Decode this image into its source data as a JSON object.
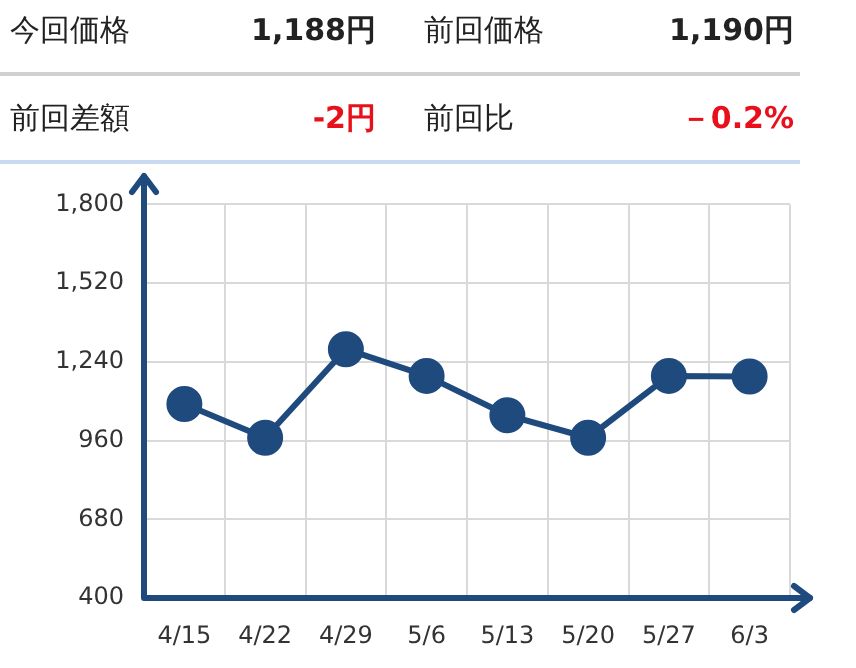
{
  "chart_data": {
    "type": "line",
    "categories": [
      "4/15",
      "4/22",
      "4/29",
      "5/6",
      "5/13",
      "5/20",
      "5/27",
      "6/3"
    ],
    "series": [
      {
        "color": "#1f4a7d",
        "values": [
          1090,
          970,
          1285,
          1190,
          1050,
          970,
          1190,
          1188
        ]
      }
    ],
    "ylim": [
      400,
      1800
    ],
    "yticks": [
      {
        "value": 400,
        "label": "400"
      },
      {
        "value": 680,
        "label": "680"
      },
      {
        "value": 960,
        "label": "960"
      },
      {
        "value": 1240,
        "label": "1,240"
      },
      {
        "value": 1520,
        "label": "1,520"
      },
      {
        "value": 1800,
        "label": "1,800"
      }
    ],
    "grid": true,
    "legend": false,
    "marker": "circle",
    "line_style": "solid",
    "annotations": [
      "今回価格",
      "1,188円",
      "前回価格",
      "1,190円",
      "前回差額",
      "-2円",
      "前回比",
      "－0.2%"
    ]
  }
}
